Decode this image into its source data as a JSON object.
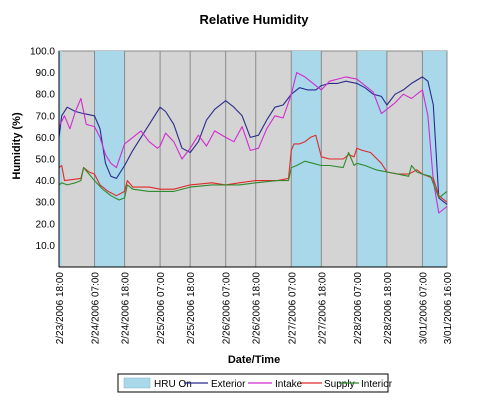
{
  "chart_data": {
    "type": "line",
    "title": "Relative Humidity",
    "xlabel": "Date/Time",
    "ylabel": "Humidity (%)",
    "ylim": [
      0,
      100
    ],
    "y_ticks": [
      "10.0",
      "20.0",
      "30.0",
      "40.0",
      "50.0",
      "60.0",
      "70.0",
      "80.0",
      "90.0",
      "100.0"
    ],
    "x_range": [
      "2/23/2006 18:00",
      "3/01/2006 16:00"
    ],
    "x_tick_labels": [
      "2/23/2006 18:00",
      "2/24/2006 07:00",
      "2/24/2006 18:00",
      "2/25/2006 07:00",
      "2/25/2006 18:00",
      "2/26/2006 07:00",
      "2/26/2006 18:00",
      "2/27/2006 07:00",
      "2/27/2006 18:00",
      "2/28/2006 07:00",
      "2/28/2006 18:00",
      "3/01/2006 07:00",
      "3/01/2006 16:00"
    ],
    "grid": "vertical lines at ticks",
    "legend_position": "bottom",
    "hru_on_label": "HRU On",
    "hru_on_periods": [
      [
        "2/23/2006 18:00",
        "2/23/2006 19:00"
      ],
      [
        "2/24/2006 07:00",
        "2/24/2006 18:00"
      ],
      [
        "2/27/2006 07:00",
        "2/27/2006 18:00"
      ],
      [
        "2/28/2006 07:00",
        "2/28/2006 18:00"
      ],
      [
        "3/01/2006 07:00",
        "3/01/2006 16:00"
      ]
    ],
    "series": [
      {
        "name": "Exterior",
        "color": "#2b2b8c",
        "x": [
          "2/23/2006 18:00",
          "2/23/2006 19:00",
          "2/23/2006 21:00",
          "2/24/2006 00:00",
          "2/24/2006 03:00",
          "2/24/2006 07:00",
          "2/24/2006 09:00",
          "2/24/2006 11:00",
          "2/24/2006 13:00",
          "2/24/2006 15:00",
          "2/24/2006 18:00",
          "2/24/2006 21:00",
          "2/25/2006 00:00",
          "2/25/2006 03:00",
          "2/25/2006 07:00",
          "2/25/2006 09:00",
          "2/25/2006 12:00",
          "2/25/2006 15:00",
          "2/25/2006 18:00",
          "2/25/2006 21:00",
          "2/26/2006 00:00",
          "2/26/2006 03:00",
          "2/26/2006 07:00",
          "2/26/2006 10:00",
          "2/26/2006 13:00",
          "2/26/2006 16:00",
          "2/26/2006 19:00",
          "2/26/2006 22:00",
          "2/27/2006 01:00",
          "2/27/2006 04:00",
          "2/27/2006 07:00",
          "2/27/2006 10:00",
          "2/27/2006 13:00",
          "2/27/2006 16:00",
          "2/27/2006 18:00",
          "2/27/2006 21:00",
          "2/28/2006 00:00",
          "2/28/2006 03:00",
          "2/28/2006 07:00",
          "2/28/2006 10:00",
          "2/28/2006 13:00",
          "2/28/2006 16:00",
          "2/28/2006 18:00",
          "2/28/2006 21:00",
          "3/01/2006 00:00",
          "3/01/2006 03:00",
          "3/01/2006 07:00",
          "3/01/2006 09:00",
          "3/01/2006 11:00",
          "3/01/2006 13:00",
          "3/01/2006 16:00"
        ],
        "y": [
          60,
          70,
          74,
          72,
          71,
          70,
          64,
          48,
          42,
          41,
          47,
          54,
          60,
          66,
          74,
          72,
          66,
          55,
          53,
          58,
          68,
          73,
          77,
          74,
          70,
          60,
          61,
          68,
          74,
          75,
          80,
          83,
          82,
          82,
          84,
          85,
          85,
          86,
          85,
          83,
          80,
          79,
          75,
          80,
          82,
          85,
          88,
          86,
          75,
          32,
          29
        ]
      },
      {
        "name": "Intake",
        "color": "#d12bd1",
        "x": [
          "2/23/2006 18:00",
          "2/23/2006 20:00",
          "2/23/2006 22:00",
          "2/24/2006 00:00",
          "2/24/2006 02:00",
          "2/24/2006 04:00",
          "2/24/2006 07:00",
          "2/24/2006 09:00",
          "2/24/2006 11:00",
          "2/24/2006 13:00",
          "2/24/2006 15:00",
          "2/24/2006 18:00",
          "2/24/2006 21:00",
          "2/25/2006 00:00",
          "2/25/2006 03:00",
          "2/25/2006 06:00",
          "2/25/2006 07:00",
          "2/25/2006 09:00",
          "2/25/2006 12:00",
          "2/25/2006 15:00",
          "2/25/2006 18:00",
          "2/25/2006 21:00",
          "2/26/2006 00:00",
          "2/26/2006 03:00",
          "2/26/2006 07:00",
          "2/26/2006 10:00",
          "2/26/2006 13:00",
          "2/26/2006 16:00",
          "2/26/2006 19:00",
          "2/26/2006 22:00",
          "2/27/2006 01:00",
          "2/27/2006 04:00",
          "2/27/2006 07:00",
          "2/27/2006 09:00",
          "2/27/2006 12:00",
          "2/27/2006 15:00",
          "2/27/2006 18:00",
          "2/27/2006 21:00",
          "2/28/2006 00:00",
          "2/28/2006 03:00",
          "2/28/2006 07:00",
          "2/28/2006 10:00",
          "2/28/2006 13:00",
          "2/28/2006 16:00",
          "2/28/2006 18:00",
          "2/28/2006 21:00",
          "3/01/2006 00:00",
          "3/01/2006 03:00",
          "3/01/2006 07:00",
          "3/01/2006 09:00",
          "3/01/2006 11:00",
          "3/01/2006 13:00",
          "3/01/2006 16:00"
        ],
        "y": [
          65,
          70,
          64,
          72,
          78,
          66,
          65,
          60,
          52,
          48,
          46,
          57,
          60,
          63,
          58,
          55,
          56,
          62,
          58,
          50,
          55,
          61,
          56,
          63,
          60,
          58,
          65,
          54,
          55,
          64,
          70,
          69,
          80,
          90,
          88,
          85,
          82,
          86,
          87,
          88,
          87,
          84,
          81,
          71,
          73,
          76,
          80,
          78,
          82,
          70,
          40,
          25,
          28
        ]
      },
      {
        "name": "Supply",
        "color": "#e02a2a",
        "x": [
          "2/23/2006 18:00",
          "2/23/2006 19:00",
          "2/23/2006 20:00",
          "2/24/2006 02:00",
          "2/24/2006 03:00",
          "2/24/2006 05:00",
          "2/24/2006 07:00",
          "2/24/2006 09:00",
          "2/24/2006 12:00",
          "2/24/2006 15:00",
          "2/24/2006 18:00",
          "2/24/2006 19:00",
          "2/24/2006 21:00",
          "2/25/2006 03:00",
          "2/25/2006 07:00",
          "2/25/2006 12:00",
          "2/25/2006 18:00",
          "2/26/2006 02:00",
          "2/26/2006 07:00",
          "2/26/2006 12:00",
          "2/26/2006 18:00",
          "2/27/2006 02:00",
          "2/27/2006 06:00",
          "2/27/2006 07:00",
          "2/27/2006 08:00",
          "2/27/2006 10:00",
          "2/27/2006 12:00",
          "2/27/2006 14:00",
          "2/27/2006 16:00",
          "2/27/2006 18:00",
          "2/27/2006 21:00",
          "2/28/2006 02:00",
          "2/28/2006 04:00",
          "2/28/2006 06:00",
          "2/28/2006 07:00",
          "2/28/2006 09:00",
          "2/28/2006 12:00",
          "2/28/2006 16:00",
          "2/28/2006 18:00",
          "2/28/2006 22:00",
          "3/01/2006 02:00",
          "3/01/2006 05:00",
          "3/01/2006 07:00",
          "3/01/2006 09:00",
          "3/01/2006 11:00",
          "3/01/2006 13:00",
          "3/01/2006 16:00"
        ],
        "y": [
          46,
          47,
          40,
          41,
          46,
          44,
          43,
          38,
          35,
          33,
          35,
          40,
          37,
          37,
          36,
          36,
          38,
          39,
          38,
          39,
          40,
          40,
          41,
          54,
          57,
          57,
          58,
          60,
          61,
          51,
          50,
          50,
          52,
          51,
          55,
          54,
          53,
          48,
          44,
          43,
          43,
          45,
          43,
          42,
          41,
          33,
          30
        ]
      },
      {
        "name": "Interior",
        "color": "#2e8b2e",
        "x": [
          "2/23/2006 18:00",
          "2/23/2006 19:00",
          "2/23/2006 21:00",
          "2/24/2006 00:00",
          "2/24/2006 02:00",
          "2/24/2006 03:00",
          "2/24/2006 05:00",
          "2/24/2006 07:00",
          "2/24/2006 10:00",
          "2/24/2006 13:00",
          "2/24/2006 16:00",
          "2/24/2006 18:00",
          "2/24/2006 19:00",
          "2/24/2006 21:00",
          "2/25/2006 03:00",
          "2/25/2006 07:00",
          "2/25/2006 12:00",
          "2/25/2006 18:00",
          "2/26/2006 02:00",
          "2/26/2006 07:00",
          "2/26/2006 12:00",
          "2/26/2006 18:00",
          "2/27/2006 02:00",
          "2/27/2006 06:00",
          "2/27/2006 07:00",
          "2/27/2006 09:00",
          "2/27/2006 12:00",
          "2/27/2006 15:00",
          "2/27/2006 18:00",
          "2/27/2006 21:00",
          "2/28/2006 02:00",
          "2/28/2006 04:00",
          "2/28/2006 06:00",
          "2/28/2006 07:00",
          "2/28/2006 10:00",
          "2/28/2006 14:00",
          "2/28/2006 18:00",
          "2/28/2006 22:00",
          "3/01/2006 02:00",
          "3/01/2006 03:00",
          "3/01/2006 05:00",
          "3/01/2006 07:00",
          "3/01/2006 10:00",
          "3/01/2006 13:00",
          "3/01/2006 16:00"
        ],
        "y": [
          38,
          39,
          38,
          39,
          40,
          46,
          43,
          40,
          36,
          33,
          31,
          32,
          38,
          36,
          35,
          35,
          35,
          37,
          38,
          38,
          38,
          39,
          40,
          40,
          46,
          47,
          49,
          48,
          47,
          47,
          46,
          53,
          47,
          48,
          47,
          45,
          44,
          43,
          42,
          47,
          44,
          43,
          42,
          32,
          35
        ]
      }
    ]
  }
}
